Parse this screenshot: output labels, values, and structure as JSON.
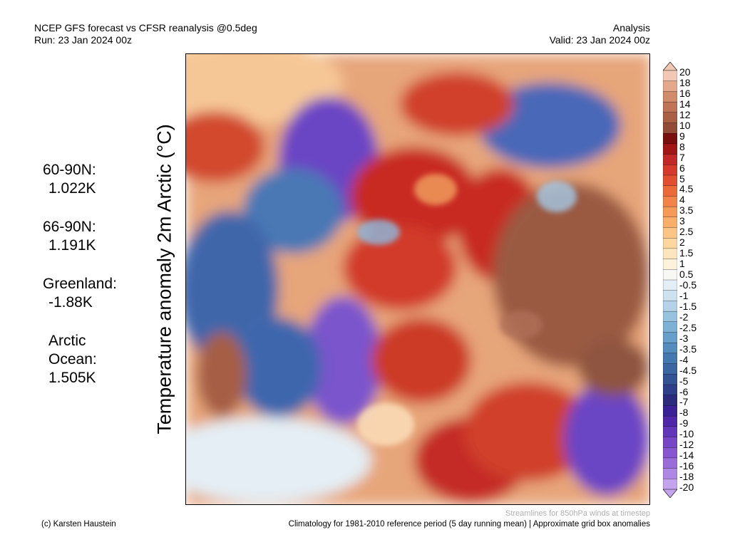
{
  "header": {
    "title_line1": "NCEP GFS forecast vs CFSR reanalysis @0.5deg",
    "title_line2": "Run: 23 Jan 2024 00z",
    "right_line1": "Analysis",
    "right_line2": "Valid: 23 Jan 2024 00z"
  },
  "ylabel": "Temperature anomaly 2m Arctic (°C)",
  "stats": [
    {
      "label": "60-90N:",
      "value": "1.022K"
    },
    {
      "label": "66-90N:",
      "value": "1.191K"
    },
    {
      "label": "Greenland:",
      "value": "-1.88K"
    },
    {
      "label": "Arctic Ocean:",
      "value": "1.505K"
    }
  ],
  "colorbar": {
    "ticks": [
      "20",
      "18",
      "16",
      "14",
      "12",
      "10",
      "9",
      "8",
      "7",
      "6",
      "5",
      "4.5",
      "4",
      "3.5",
      "3",
      "2.5",
      "2",
      "1.5",
      "1",
      "0.5",
      "-0.5",
      "-1",
      "-1.5",
      "-2",
      "-2.5",
      "-3",
      "-3.5",
      "-4",
      "-4.5",
      "-5",
      "-6",
      "-7",
      "-8",
      "-9",
      "-10",
      "-12",
      "-14",
      "-16",
      "-18",
      "-20"
    ],
    "colors": [
      "#f2c7b3",
      "#e3a98a",
      "#d18c6b",
      "#bf7455",
      "#ab5f45",
      "#934a36",
      "#7a0f0f",
      "#a31616",
      "#c22828",
      "#d63a2c",
      "#e24f30",
      "#ec6a38",
      "#f28448",
      "#f69a58",
      "#f9af6a",
      "#fbc585",
      "#fcd8a0",
      "#fde6bd",
      "#fdf2dc",
      "#f7f7f4",
      "#e3eef6",
      "#cde2ef",
      "#b4d3e8",
      "#98c3df",
      "#7db1d5",
      "#669fca",
      "#538cbd",
      "#4478b0",
      "#3b65a3",
      "#345396",
      "#2f3f8a",
      "#2c2b7e",
      "#3a2296",
      "#4f28aa",
      "#6236b8",
      "#7546c5",
      "#8756d0",
      "#9a6cda",
      "#ae86e3",
      "#c4a4ec"
    ]
  },
  "footer": {
    "credit": "(c) Karsten Haustein",
    "climatology": "Climatology for 1981-2010 reference period (5 day running mean) | Approximate grid box anomalies",
    "streamlines": "Streamlines for 850hPa winds at timestep"
  }
}
